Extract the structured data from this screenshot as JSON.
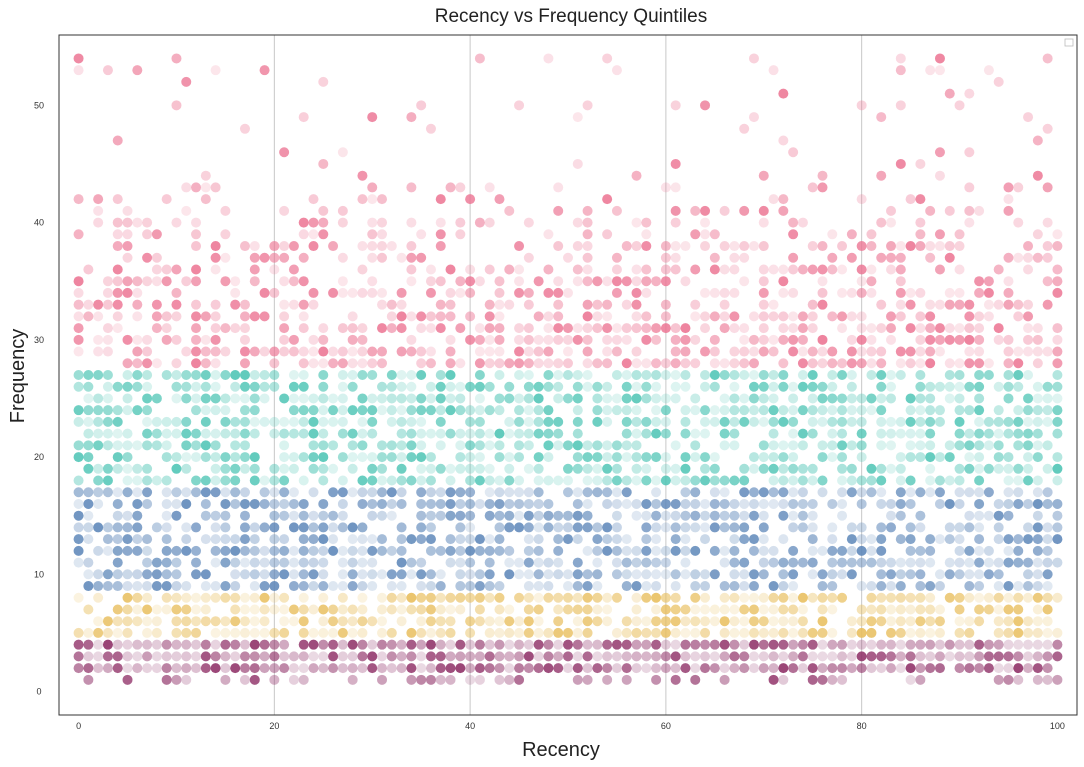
{
  "chart_data": {
    "type": "scatter",
    "title": "Recency vs Frequency Quintiles",
    "xlabel": "Recency",
    "ylabel": "Frequency",
    "xlim": [
      -2,
      102
    ],
    "ylim": [
      -2,
      56
    ],
    "xticks": [
      0,
      20,
      40,
      60,
      80,
      100
    ],
    "yticks": [
      0,
      10,
      20,
      30,
      40,
      50
    ],
    "grid": "vertical lines at x = 20, 40, 60, 80",
    "legend": "top-right (empty)",
    "x_range": [
      0,
      100
    ],
    "series": [
      {
        "color": "#8c2a63",
        "y_range": [
          1,
          4
        ],
        "density": "very high"
      },
      {
        "color": "#e8bd5a",
        "y_range": [
          5,
          8
        ],
        "density": "high"
      },
      {
        "color": "#5b85b8",
        "y_range": [
          9,
          17
        ],
        "density": "high"
      },
      {
        "color": "#4cc4b4",
        "y_range": [
          18,
          27
        ],
        "density": "high"
      },
      {
        "color": "#ec7392",
        "y_range": [
          28,
          54
        ],
        "density": "decreasing with frequency"
      }
    ],
    "notable_points": [
      {
        "x": 25,
        "y": 52
      },
      {
        "x": 54,
        "y": 54
      },
      {
        "x": 69,
        "y": 54
      },
      {
        "x": 94,
        "y": 52
      },
      {
        "x": 45,
        "y": 50
      },
      {
        "x": 52,
        "y": 50
      },
      {
        "x": 61,
        "y": 50
      },
      {
        "x": 80,
        "y": 50
      },
      {
        "x": 84,
        "y": 50
      },
      {
        "x": 90,
        "y": 50
      },
      {
        "x": 17,
        "y": 48
      },
      {
        "x": 68,
        "y": 48
      },
      {
        "x": 36,
        "y": 48
      },
      {
        "x": 99,
        "y": 48
      }
    ]
  }
}
